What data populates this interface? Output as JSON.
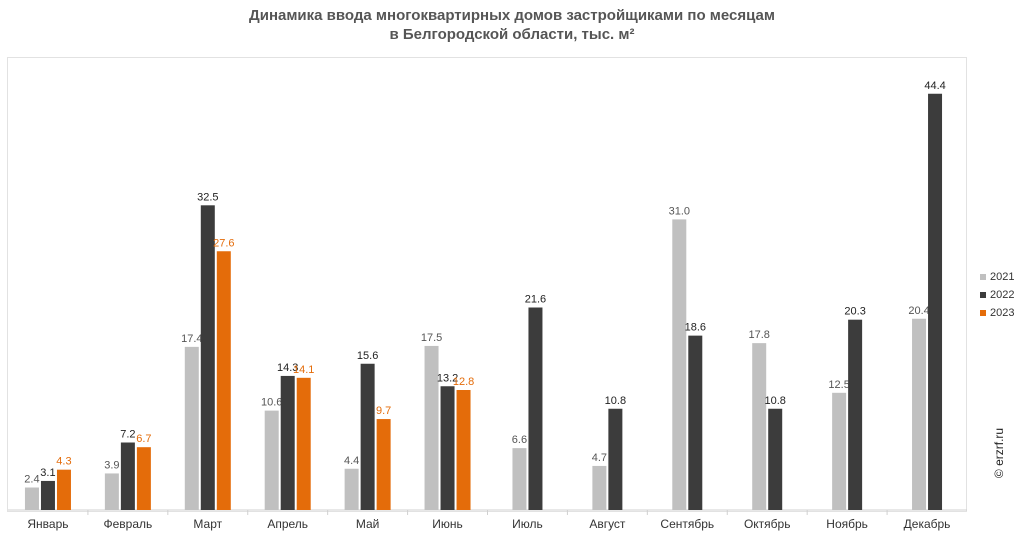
{
  "title_line1": "Динамика ввода многоквартирных домов застройщиками по месяцам",
  "title_line2": "в Белгородской области, тыс. м²",
  "copyright": "© erzrf.ru",
  "chart_data": {
    "type": "bar",
    "title": "Динамика ввода многоквартирных домов застройщиками по месяцам в Белгородской области, тыс. м²",
    "categories": [
      "Январь",
      "Февраль",
      "Март",
      "Апрель",
      "Май",
      "Июнь",
      "Июль",
      "Август",
      "Сентябрь",
      "Октябрь",
      "Ноябрь",
      "Декабрь"
    ],
    "series": [
      {
        "name": "2021",
        "color": "#c0c0c0",
        "label_color": "#555555",
        "values": [
          2.4,
          3.9,
          17.4,
          10.6,
          4.4,
          17.5,
          6.6,
          4.7,
          31.0,
          17.8,
          12.5,
          20.4
        ]
      },
      {
        "name": "2022",
        "color": "#3c3c3c",
        "label_color": "#222222",
        "values": [
          3.1,
          7.2,
          32.5,
          14.3,
          15.6,
          13.2,
          21.6,
          10.8,
          18.6,
          10.8,
          20.3,
          44.4
        ]
      },
      {
        "name": "2023",
        "color": "#e46c0a",
        "label_color": "#e46c0a",
        "values": [
          4.3,
          6.7,
          27.6,
          14.1,
          9.7,
          12.8,
          null,
          null,
          null,
          null,
          null,
          null
        ]
      }
    ],
    "ylim": [
      0,
      48
    ],
    "grid": false,
    "legend": "right"
  }
}
